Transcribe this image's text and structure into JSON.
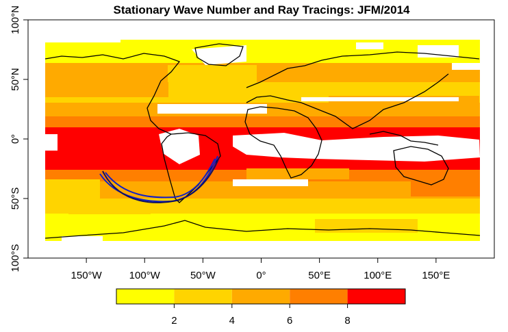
{
  "title": "Stationary Wave Number and Ray Tracings: JFM/2014",
  "x_axis": {
    "ticks": [
      {
        "value": -150,
        "label": "150°W"
      },
      {
        "value": -100,
        "label": "100°W"
      },
      {
        "value": -50,
        "label": "50°W"
      },
      {
        "value": 0,
        "label": "0°"
      },
      {
        "value": 50,
        "label": "50°E"
      },
      {
        "value": 100,
        "label": "100°E"
      },
      {
        "value": 150,
        "label": "150°E"
      }
    ],
    "range": [
      -200,
      200
    ]
  },
  "y_axis": {
    "ticks": [
      {
        "value": 100,
        "label": "100°N"
      },
      {
        "value": 50,
        "label": "50°N"
      },
      {
        "value": 0,
        "label": "0°"
      },
      {
        "value": -50,
        "label": "50°S"
      },
      {
        "value": -100,
        "label": "100°S"
      }
    ],
    "range": [
      -100,
      100
    ]
  },
  "colorbar": {
    "breaks": [
      0,
      2,
      4,
      6,
      8,
      10
    ],
    "labels": [
      {
        "value": 2,
        "label": "2"
      },
      {
        "value": 4,
        "label": "4"
      },
      {
        "value": 6,
        "label": "6"
      },
      {
        "value": 8,
        "label": "8"
      }
    ],
    "colors": [
      "#ffff00",
      "#ffd400",
      "#ffaa00",
      "#ff7f00",
      "#ff0000"
    ]
  },
  "colors": {
    "ray": "#1020c8",
    "coast": "#000000",
    "missing": "#ffffff"
  }
}
